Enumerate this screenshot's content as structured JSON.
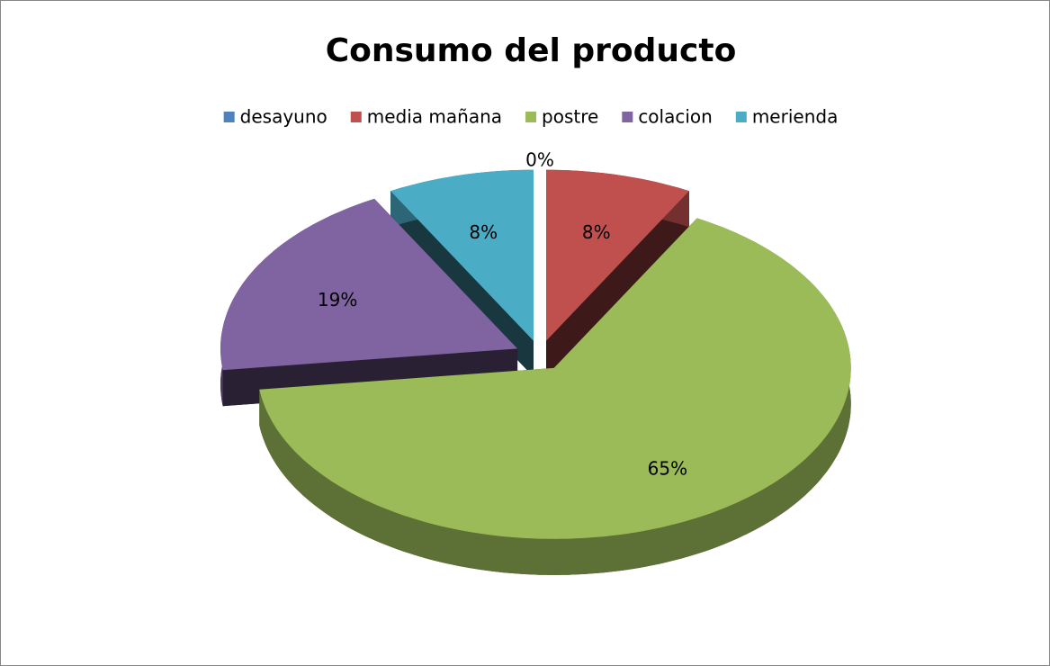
{
  "chart_data": {
    "type": "pie3d",
    "title": "Consumo del producto",
    "categories": [
      "desayuno",
      "media mañana",
      "postre",
      "colacion",
      "merienda"
    ],
    "values": [
      0,
      8,
      65,
      19,
      8
    ],
    "value_labels": [
      "0%",
      "8%",
      "65%",
      "19%",
      "8%"
    ],
    "colors": [
      "#4f81bd",
      "#c0504d",
      "#9bbb59",
      "#8064a2",
      "#4bacc6"
    ],
    "legend": "top",
    "exploded": true
  }
}
